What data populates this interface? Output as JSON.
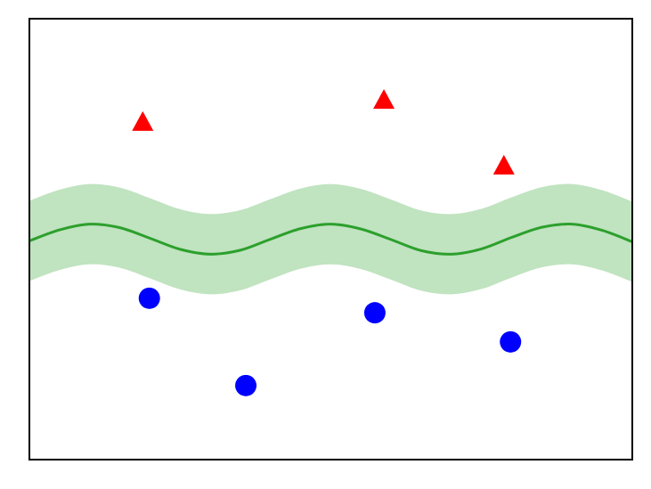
{
  "chart_data": {
    "type": "scatter",
    "xlim": [
      0,
      10
    ],
    "ylim": [
      0,
      10
    ],
    "boundary": {
      "color": "#2ca02c",
      "band_color": "#c0e3c0",
      "x": [
        0,
        0.5,
        1,
        1.5,
        2,
        2.5,
        3,
        3.5,
        4,
        4.5,
        5,
        5.5,
        6,
        6.5,
        7,
        7.5,
        8,
        8.5,
        9,
        9.5,
        10
      ],
      "values": [
        4.96,
        5.21,
        5.34,
        5.26,
        5.02,
        4.77,
        4.66,
        4.75,
        5.0,
        5.24,
        5.34,
        5.23,
        4.99,
        4.74,
        4.66,
        4.78,
        5.04,
        5.27,
        5.34,
        5.2,
        4.94
      ],
      "lower": [
        4.05,
        4.3,
        4.43,
        4.35,
        4.11,
        3.86,
        3.75,
        3.84,
        4.09,
        4.33,
        4.43,
        4.32,
        4.08,
        3.83,
        3.75,
        3.87,
        4.13,
        4.36,
        4.43,
        4.29,
        4.03
      ],
      "upper": [
        5.87,
        6.12,
        6.25,
        6.17,
        5.93,
        5.68,
        5.57,
        5.66,
        5.91,
        6.15,
        6.25,
        6.14,
        5.9,
        5.65,
        5.57,
        5.69,
        5.95,
        6.18,
        6.25,
        6.11,
        5.85
      ]
    },
    "series": [
      {
        "color": "#ff0000",
        "marker": "triangle",
        "x": [
          1.88,
          5.88,
          7.87
        ],
        "values": [
          7.64,
          8.14,
          6.65
        ]
      },
      {
        "color": "#0000ff",
        "marker": "circle",
        "x": [
          1.99,
          3.59,
          5.73,
          7.98
        ],
        "values": [
          3.66,
          1.68,
          3.33,
          2.67
        ]
      }
    ]
  }
}
